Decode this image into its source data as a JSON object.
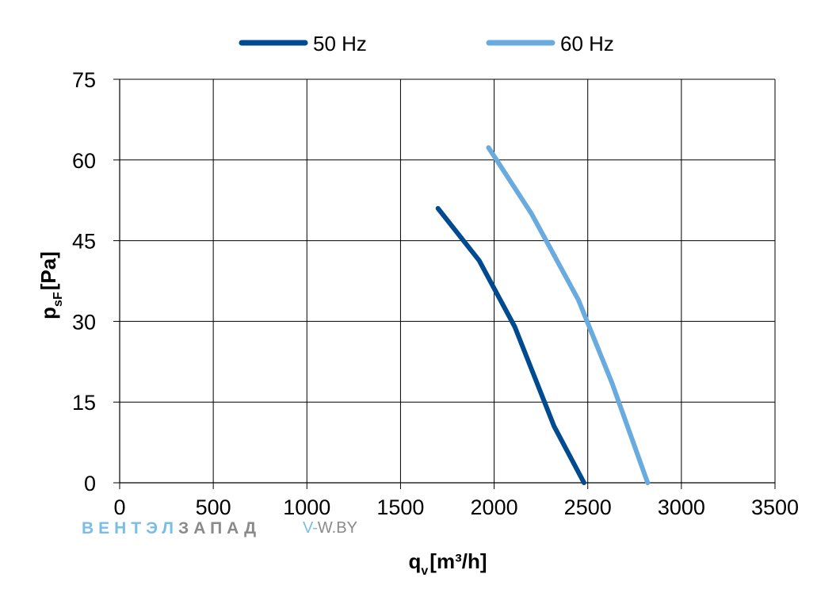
{
  "chart_data": {
    "type": "line",
    "title": "",
    "xlabel": {
      "main": "q",
      "sub": "v",
      "unit": "[m³/h]"
    },
    "ylabel": {
      "main": "p",
      "sub": "sF",
      "unit": "[Pa]"
    },
    "xlim": [
      0,
      3500
    ],
    "ylim": [
      0,
      75
    ],
    "xticks": [
      0,
      500,
      1000,
      1500,
      2000,
      2500,
      3000,
      3500
    ],
    "yticks": [
      0,
      15,
      30,
      45,
      60,
      75
    ],
    "xtick_labels": [
      "0",
      "500",
      "1000",
      "1500",
      "2000",
      "2500",
      "3000",
      "3500"
    ],
    "ytick_labels": [
      "0",
      "15",
      "30",
      "45",
      "60",
      "75"
    ],
    "grid": true,
    "legend_position": "top",
    "series": [
      {
        "name": "50 Hz",
        "color": "#004a8f",
        "points": [
          [
            1700,
            51
          ],
          [
            1920,
            41.3
          ],
          [
            2110,
            29
          ],
          [
            2320,
            10.5
          ],
          [
            2480,
            0
          ]
        ]
      },
      {
        "name": "60 Hz",
        "color": "#6aabdf",
        "points": [
          [
            1970,
            62.3
          ],
          [
            2200,
            50
          ],
          [
            2450,
            34
          ],
          [
            2630,
            18.5
          ],
          [
            2820,
            0
          ]
        ]
      }
    ]
  },
  "watermark": {
    "blue_text": "ВЕНТЭЛ",
    "grey_text": "ЗАПАД",
    "site_prefix": "V-",
    "site_rest": "W.BY",
    "blue_color": "#7cbde3",
    "grey_color": "#8a8a8a"
  }
}
